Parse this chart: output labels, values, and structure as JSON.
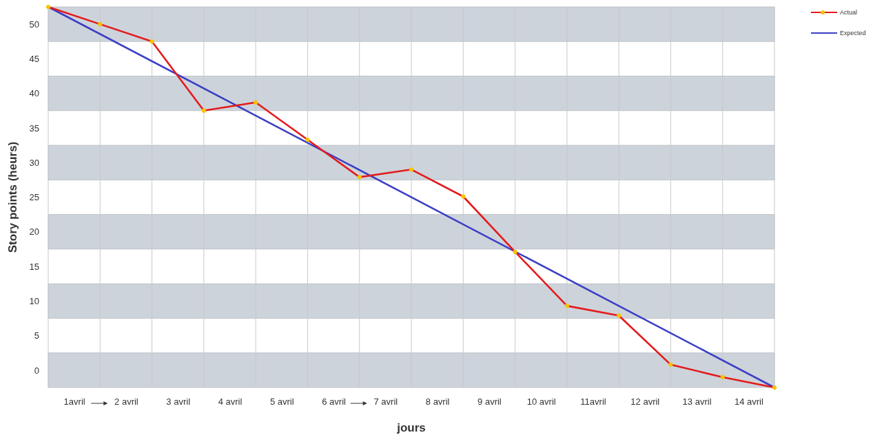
{
  "chart_data": {
    "type": "line",
    "xlabel": "jours",
    "ylabel": "Story points (heurs)",
    "x": [
      0,
      1,
      2,
      3,
      4,
      5,
      6,
      7,
      8,
      9,
      10,
      11,
      12,
      13,
      14
    ],
    "xlim": [
      0,
      14
    ],
    "xticks": [
      {
        "value": 0.5,
        "label": "1avril"
      },
      {
        "value": 1,
        "label": null
      },
      {
        "value": 1.5,
        "label": "2 avril"
      },
      {
        "value": 2,
        "label": null
      },
      {
        "value": 2.5,
        "label": "3 avril"
      },
      {
        "value": 3,
        "label": null
      },
      {
        "value": 3.5,
        "label": "4 avril"
      },
      {
        "value": 4,
        "label": null
      },
      {
        "value": 4.5,
        "label": "5 avril"
      },
      {
        "value": 5,
        "label": null
      },
      {
        "value": 5.5,
        "label": "6 avril"
      },
      {
        "value": 6,
        "label": null
      },
      {
        "value": 6.5,
        "label": "7 avril"
      },
      {
        "value": 7,
        "label": null
      },
      {
        "value": 7.5,
        "label": "8 avril"
      },
      {
        "value": 8,
        "label": null
      },
      {
        "value": 8.5,
        "label": "9 avril"
      },
      {
        "value": 9,
        "label": null
      },
      {
        "value": 9.5,
        "label": "10 avril"
      },
      {
        "value": 10,
        "label": null
      },
      {
        "value": 10.5,
        "label": "11avril"
      },
      {
        "value": 11,
        "label": null
      },
      {
        "value": 11.5,
        "label": "12 avril"
      },
      {
        "value": 12,
        "label": null
      },
      {
        "value": 12.5,
        "label": "13 avril"
      },
      {
        "value": 13,
        "label": null
      },
      {
        "value": 13.5,
        "label": "14 avril"
      }
    ],
    "ylim": [
      -2.5,
      52.5
    ],
    "yticks": [
      0,
      5,
      10,
      15,
      20,
      25,
      30,
      35,
      40,
      45,
      50
    ],
    "grid": "x",
    "legend": "top right",
    "bands": [
      {
        "axis": "y",
        "from": -2.5,
        "to": 2.5,
        "color": "#cdd3db"
      },
      {
        "axis": "y",
        "from": 7.5,
        "to": 12.5,
        "color": "#cdd3db"
      },
      {
        "axis": "y",
        "from": 17.5,
        "to": 22.5,
        "color": "#cdd3db"
      },
      {
        "axis": "y",
        "from": 27.5,
        "to": 32.5,
        "color": "#cdd3db"
      },
      {
        "axis": "y",
        "from": 37.5,
        "to": 42.5,
        "color": "#cdd3db"
      },
      {
        "axis": "y",
        "from": 47.5,
        "to": 52.5,
        "color": "#cdd3db"
      }
    ],
    "series": [
      {
        "name": "Actual",
        "color": "#e41a1c",
        "marker": "circle",
        "values": [
          52.5,
          50,
          47.5,
          37.5,
          38.7,
          33.3,
          27.9,
          29,
          25.1,
          17.1,
          9.3,
          7.9,
          0.8,
          -1,
          -2.5
        ]
      },
      {
        "name": "Expected",
        "color": "#3b3fc4",
        "marker": "none",
        "x": [
          0,
          14
        ],
        "values": [
          52.5,
          -2.5
        ]
      }
    ]
  }
}
